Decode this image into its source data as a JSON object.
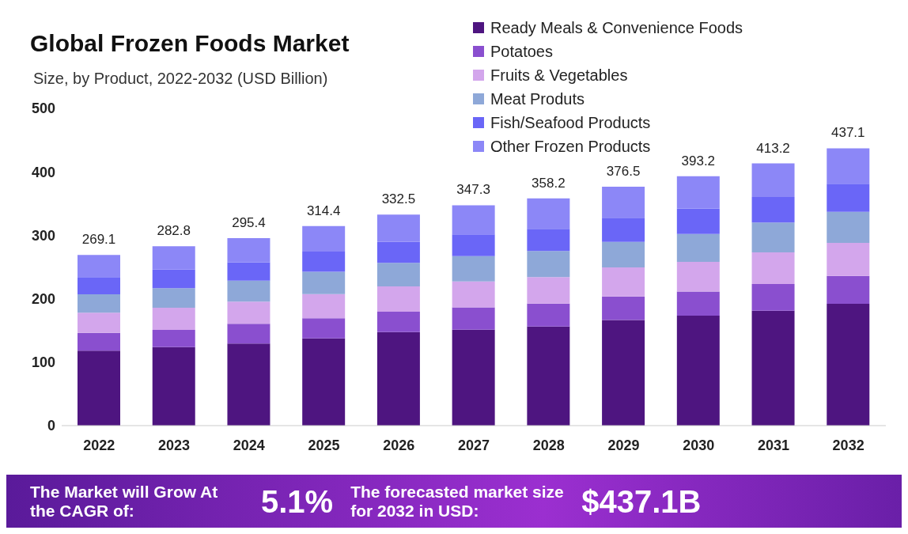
{
  "chart_data": {
    "type": "bar",
    "stacked": true,
    "title": "Global Frozen Foods Market",
    "subtitle": "Size, by Product, 2022-2032 (USD Billion)",
    "categories": [
      "2022",
      "2023",
      "2024",
      "2025",
      "2026",
      "2027",
      "2028",
      "2029",
      "2030",
      "2031",
      "2032"
    ],
    "series": [
      {
        "name": "Ready Meals & Convenience Foods",
        "color": "#4e1580",
        "values": [
          118.1,
          123.8,
          129.4,
          137.4,
          147.5,
          151.3,
          156.2,
          166.5,
          173.2,
          181.2,
          192.1
        ]
      },
      {
        "name": "Potatoes",
        "color": "#8a4fcf",
        "values": [
          28,
          27,
          31,
          32,
          32,
          35,
          36,
          37,
          38,
          42,
          44
        ]
      },
      {
        "name": "Fruits & Vegetables",
        "color": "#d3a6ec",
        "values": [
          32,
          35,
          35,
          38,
          40,
          41,
          42,
          46,
          47,
          50,
          52
        ]
      },
      {
        "name": "Meat Produts",
        "color": "#8ea8d8",
        "values": [
          29,
          31,
          33,
          35,
          37,
          40,
          41,
          40,
          44,
          47,
          49
        ]
      },
      {
        "name": "Fish/Seafood Products",
        "color": "#6a66f7",
        "values": [
          27,
          29,
          29,
          32,
          33,
          34,
          35,
          38,
          40,
          40,
          44
        ]
      },
      {
        "name": "Other Frozen Products",
        "color": "#8c87f7",
        "values": [
          35,
          37,
          38,
          40,
          43,
          46,
          48,
          49,
          51,
          53,
          56
        ]
      }
    ],
    "totals": [
      "269.1",
      "282.8",
      "295.4",
      "314.4",
      "332.5",
      "347.3",
      "358.2",
      "376.5",
      "393.2",
      "413.2",
      "437.1"
    ],
    "ylim": [
      0,
      500
    ],
    "yticks": [
      0,
      100,
      200,
      300,
      400,
      500
    ],
    "grid": false,
    "legend": "top right",
    "annotations": [
      "The Market will Grow At the CAGR of:",
      "5.1%",
      "The forecasted market size for 2032 in USD:",
      "$437.1B"
    ]
  }
}
